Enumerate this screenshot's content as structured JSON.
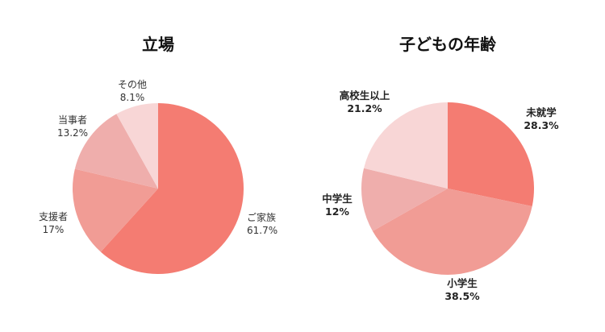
{
  "chart_data": [
    {
      "type": "pie",
      "title": "立場",
      "bold_labels": false,
      "slices": [
        {
          "label": "ご家族",
          "value": 61.7,
          "value_text": "61.7%",
          "color": "#F47C72"
        },
        {
          "label": "支援者",
          "value": 17,
          "value_text": "17%",
          "color": "#F19C95"
        },
        {
          "label": "当事者",
          "value": 13.2,
          "value_text": "13.2%",
          "color": "#EFAEAC"
        },
        {
          "label": "その他",
          "value": 8.1,
          "value_text": "8.1%",
          "color": "#F8D6D6"
        }
      ]
    },
    {
      "type": "pie",
      "title": "子どもの年齢",
      "bold_labels": true,
      "slices": [
        {
          "label": "未就学",
          "value": 28.3,
          "value_text": "28.3%",
          "color": "#F47C72"
        },
        {
          "label": "小学生",
          "value": 38.5,
          "value_text": "38.5%",
          "color": "#F19C95"
        },
        {
          "label": "中学生",
          "value": 12,
          "value_text": "12%",
          "color": "#EFAEAC"
        },
        {
          "label": "高校生以上",
          "value": 21.2,
          "value_text": "21.2%",
          "color": "#F8D6D6"
        }
      ]
    }
  ]
}
